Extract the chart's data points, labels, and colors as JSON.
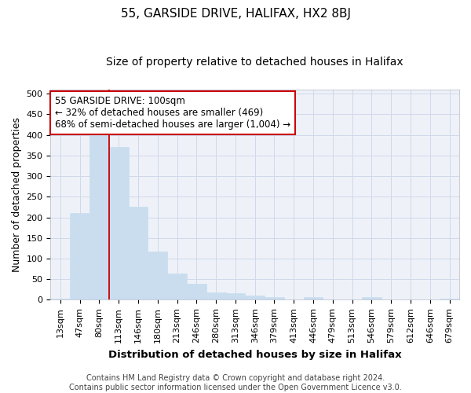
{
  "title": "55, GARSIDE DRIVE, HALIFAX, HX2 8BJ",
  "subtitle": "Size of property relative to detached houses in Halifax",
  "xlabel": "Distribution of detached houses by size in Halifax",
  "ylabel": "Number of detached properties",
  "categories": [
    "13sqm",
    "47sqm",
    "80sqm",
    "113sqm",
    "146sqm",
    "180sqm",
    "213sqm",
    "246sqm",
    "280sqm",
    "313sqm",
    "346sqm",
    "379sqm",
    "413sqm",
    "446sqm",
    "479sqm",
    "513sqm",
    "546sqm",
    "579sqm",
    "612sqm",
    "646sqm",
    "679sqm"
  ],
  "values": [
    2,
    211,
    405,
    370,
    226,
    117,
    63,
    38,
    18,
    15,
    10,
    6,
    0,
    6,
    0,
    0,
    6,
    0,
    0,
    0,
    2
  ],
  "bar_color": "#c9ddef",
  "bar_edge_color": "#c9ddef",
  "vline_color": "#cc0000",
  "vline_x_index": 2,
  "annotation_text": "55 GARSIDE DRIVE: 100sqm\n← 32% of detached houses are smaller (469)\n68% of semi-detached houses are larger (1,004) →",
  "annotation_box_color": "#ffffff",
  "annotation_box_edge_color": "#cc0000",
  "ylim": [
    0,
    510
  ],
  "yticks": [
    0,
    50,
    100,
    150,
    200,
    250,
    300,
    350,
    400,
    450,
    500
  ],
  "grid_color": "#d0d8ea",
  "background_color": "#eef2f8",
  "footer_text": "Contains HM Land Registry data © Crown copyright and database right 2024.\nContains public sector information licensed under the Open Government Licence v3.0.",
  "title_fontsize": 11,
  "subtitle_fontsize": 10,
  "xlabel_fontsize": 9.5,
  "ylabel_fontsize": 9,
  "tick_fontsize": 8,
  "annotation_fontsize": 8.5,
  "footer_fontsize": 7
}
